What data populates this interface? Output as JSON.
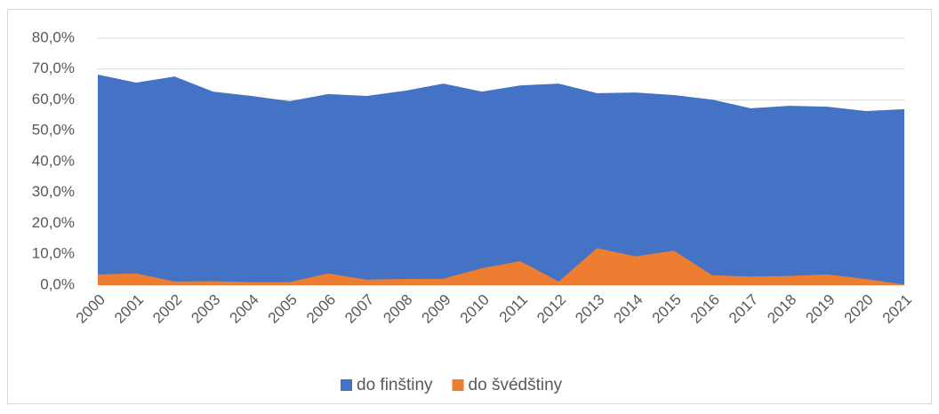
{
  "chart_data": {
    "type": "area",
    "categories": [
      "2000",
      "2001",
      "2002",
      "2003",
      "2004",
      "2005",
      "2006",
      "2007",
      "2008",
      "2009",
      "2010",
      "2011",
      "2012",
      "2013",
      "2014",
      "2015",
      "2016",
      "2017",
      "2018",
      "2019",
      "2020",
      "2021"
    ],
    "series": [
      {
        "name": "do finštiny",
        "color": "#4472c4",
        "values": [
          68.2,
          65.6,
          67.6,
          62.7,
          61.3,
          59.6,
          61.9,
          61.3,
          63.0,
          65.3,
          62.7,
          64.7,
          65.3,
          62.2,
          62.4,
          61.6,
          60.1,
          57.3,
          58.1,
          57.8,
          56.4,
          57.0
        ]
      },
      {
        "name": "do švédštiny",
        "color": "#ed7d31",
        "values": [
          3.5,
          3.8,
          1.2,
          1.3,
          1.0,
          1.0,
          3.8,
          1.8,
          2.0,
          2.1,
          5.5,
          7.8,
          1.2,
          12.0,
          9.3,
          11.2,
          3.2,
          2.8,
          3.0,
          3.5,
          2.0,
          0.2
        ]
      }
    ],
    "ylim": [
      0,
      80
    ],
    "yticks": [
      {
        "value": 0,
        "label": "0,0%"
      },
      {
        "value": 10,
        "label": "10,0%"
      },
      {
        "value": 20,
        "label": "20,0%"
      },
      {
        "value": 30,
        "label": "30,0%"
      },
      {
        "value": 40,
        "label": "40,0%"
      },
      {
        "value": 50,
        "label": "50,0%"
      },
      {
        "value": 60,
        "label": "60,0%"
      },
      {
        "value": 70,
        "label": "70,0%"
      },
      {
        "value": 80,
        "label": "80,0%"
      }
    ],
    "grid": true,
    "legend": "bottom"
  }
}
